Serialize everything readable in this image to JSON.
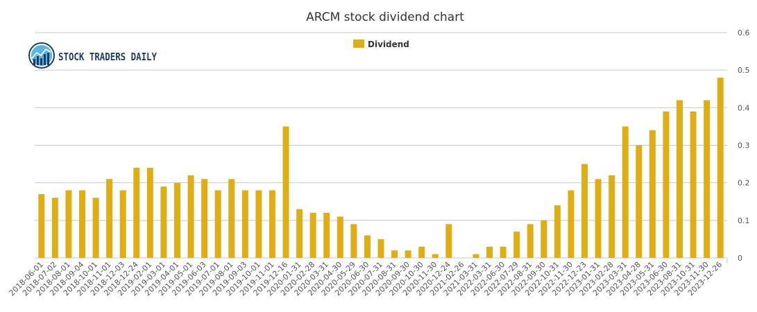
{
  "brand": {
    "name": "STOCK TRADERS DAILY",
    "icon": "bar-chart-logo-icon"
  },
  "colors": {
    "bar": "#DFAE15",
    "grid": "#C8C8C8",
    "text": "#333333",
    "brand": "#1C3D5E"
  },
  "chart_data": {
    "type": "bar",
    "title": "ARCM stock dividend chart",
    "legend": {
      "entries": [
        "Dividend"
      ],
      "placement": "top-center"
    },
    "y_axis_side": "right",
    "ylim": [
      0,
      0.6
    ],
    "yticks": [
      "0",
      "0.1",
      "0.2",
      "0.3",
      "0.4",
      "0.5",
      "0.6"
    ],
    "grid": true,
    "categories": [
      "2018-06-01",
      "2018-07-02",
      "2018-08-01",
      "2018-09-04",
      "2018-10-01",
      "2018-11-01",
      "2018-12-03",
      "2018-12-24",
      "2019-02-01",
      "2019-03-01",
      "2019-04-01",
      "2019-05-01",
      "2019-06-03",
      "2019-07-01",
      "2019-08-01",
      "2019-09-03",
      "2019-10-01",
      "2019-11-01",
      "2019-12-16",
      "2020-01-31",
      "2020-02-28",
      "2020-03-31",
      "2020-04-30",
      "2020-05-29",
      "2020-06-30",
      "2020-07-31",
      "2020-08-31",
      "2020-09-30",
      "2020-10-30",
      "2020-11-30",
      "2020-12-24",
      "2021-02-26",
      "2021-03-31",
      "2022-03-31",
      "2022-06-30",
      "2022-07-29",
      "2022-08-31",
      "2022-09-30",
      "2022-10-31",
      "2022-11-30",
      "2022-12-23",
      "2023-01-31",
      "2023-02-28",
      "2023-03-31",
      "2023-04-28",
      "2023-05-31",
      "2023-06-30",
      "2023-08-31",
      "2023-10-31",
      "2023-11-30",
      "2023-12-26"
    ],
    "series": [
      {
        "name": "Dividend",
        "values": [
          0.17,
          0.16,
          0.18,
          0.18,
          0.16,
          0.21,
          0.18,
          0.24,
          0.24,
          0.19,
          0.2,
          0.22,
          0.21,
          0.18,
          0.21,
          0.18,
          0.18,
          0.18,
          0.35,
          0.13,
          0.12,
          0.12,
          0.11,
          0.09,
          0.06,
          0.05,
          0.02,
          0.02,
          0.03,
          0.01,
          0.09,
          0,
          0.01,
          0.03,
          0.03,
          0.07,
          0.09,
          0.1,
          0.14,
          0.18,
          0.25,
          0.21,
          0.22,
          0.35,
          0.3,
          0.34,
          0.39,
          0.42,
          0.39,
          0.42,
          0.48
        ]
      }
    ]
  }
}
